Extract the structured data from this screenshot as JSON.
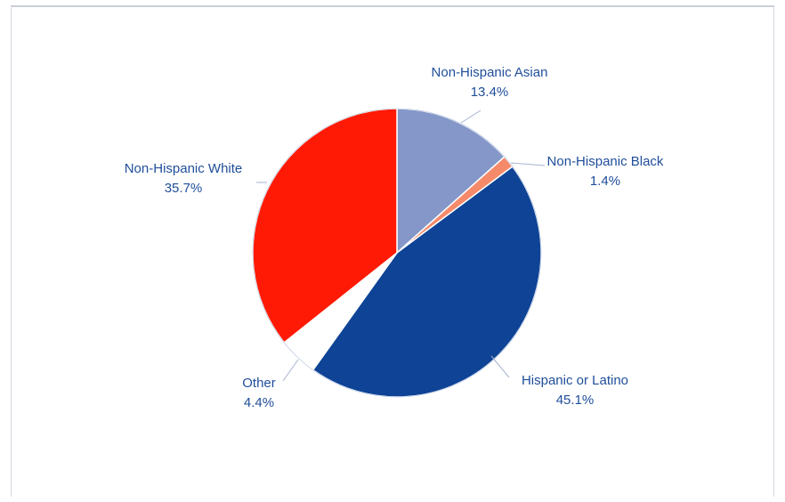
{
  "chart_data": {
    "type": "pie",
    "slices": [
      {
        "label": "Non-Hispanic Asian",
        "value": 13.4,
        "value_label": "13.4%",
        "color": "#8497c8"
      },
      {
        "label": "Non-Hispanic Black",
        "value": 1.4,
        "value_label": "1.4%",
        "color": "#f58a6a"
      },
      {
        "label": "Hispanic or Latino",
        "value": 45.1,
        "value_label": "45.1%",
        "color": "#0e4396"
      },
      {
        "label": "Other",
        "value": 4.4,
        "value_label": "4.4%",
        "color": "#ffffff"
      },
      {
        "label": "Non-Hispanic White",
        "value": 35.7,
        "value_label": "35.7%",
        "color": "#ff1a05"
      }
    ],
    "start": "12 o'clock",
    "direction": "clockwise",
    "legend": "none"
  }
}
